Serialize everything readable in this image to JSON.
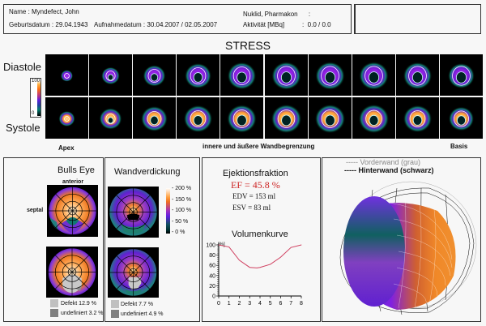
{
  "header": {
    "name_label": "Name",
    "name_value": "Myndefect, John",
    "birth_label": "Geburtsdatum",
    "birth_value": "29.04.1943",
    "acq_label": "Aufnahmedatum",
    "acq_value": "30.04.2007 / 02.05.2007",
    "nuclide_label": "Nuklid, Pharmakon",
    "nuclide_value": "",
    "activity_label": "Aktivität [MBq]",
    "activity_value": "0.0 /   0.0"
  },
  "stress": {
    "title": "STRESS",
    "row_diastole": "Diastole",
    "row_systole": "Systole",
    "scale_max": "100",
    "scale_min": "0",
    "label_apex": "Apex",
    "label_middle": "innere und äußere Wandbegrenzung",
    "label_basis": "Basis",
    "slices": [
      {
        "dia_size": 0.3,
        "sys_size": 0.4,
        "dia_ring": 0.1,
        "sys_ring": 0.15
      },
      {
        "dia_size": 0.45,
        "sys_size": 0.55,
        "dia_ring": 0.3,
        "sys_ring": 0.3
      },
      {
        "dia_size": 0.55,
        "sys_size": 0.65,
        "dia_ring": 0.4,
        "sys_ring": 0.45
      },
      {
        "dia_size": 0.65,
        "sys_size": 0.7,
        "dia_ring": 0.5,
        "sys_ring": 0.5
      },
      {
        "dia_size": 0.7,
        "sys_size": 0.72,
        "dia_ring": 0.55,
        "sys_ring": 0.55
      },
      {
        "dia_size": 0.72,
        "sys_size": 0.74,
        "dia_ring": 0.58,
        "sys_ring": 0.55
      },
      {
        "dia_size": 0.72,
        "sys_size": 0.74,
        "dia_ring": 0.58,
        "sys_ring": 0.55
      },
      {
        "dia_size": 0.72,
        "sys_size": 0.74,
        "dia_ring": 0.58,
        "sys_ring": 0.52
      },
      {
        "dia_size": 0.7,
        "sys_size": 0.7,
        "dia_ring": 0.58,
        "sys_ring": 0.5
      },
      {
        "dia_size": 0.65,
        "sys_size": 0.62,
        "dia_ring": 0.58,
        "sys_ring": 0.48
      }
    ]
  },
  "bullseye": {
    "title": "Bulls Eye",
    "label_anterior": "anterior",
    "label_septal": "septal",
    "legend": [
      {
        "label": "Defekt 12.9 %",
        "color": "#c0c0c0"
      },
      {
        "label": "undefiniert 3.2 %",
        "color": "#808080"
      }
    ]
  },
  "wall": {
    "title": "Wandverdickung",
    "scale": [
      "200 %",
      "150 %",
      "100 %",
      "50 %",
      "0 %"
    ],
    "legend": [
      {
        "label": "Defekt 7.7 %",
        "color": "#c0c0c0"
      },
      {
        "label": "undefiniert 4.9 %",
        "color": "#808080"
      }
    ]
  },
  "ejection": {
    "title": "Ejektionsfraktion",
    "ef": "EF = 45.8 %",
    "edv": "EDV = 153 ml",
    "esv": "ESV =  83 ml",
    "ef_color": "#cc2222"
  },
  "chart_data": {
    "type": "line",
    "title": "Volumenkurve",
    "ylabel": "[%]",
    "xlabel": "",
    "xlim": [
      0,
      8
    ],
    "ylim": [
      0,
      100
    ],
    "xticks": [
      "0",
      "1",
      "2",
      "3",
      "4",
      "5",
      "6",
      "7",
      "8"
    ],
    "yticks": [
      "0",
      "20",
      "40",
      "60",
      "80",
      "100"
    ],
    "x": [
      0,
      1,
      2,
      3,
      3.7,
      4,
      5,
      6,
      7,
      8
    ],
    "y": [
      100,
      96,
      70,
      56,
      55,
      56,
      62,
      76,
      95,
      100
    ],
    "color": "#d04060"
  },
  "model3d": {
    "legend_front": "----- Vorderwand (grau)",
    "legend_back": "----- Hinterwand (schwarz)"
  }
}
